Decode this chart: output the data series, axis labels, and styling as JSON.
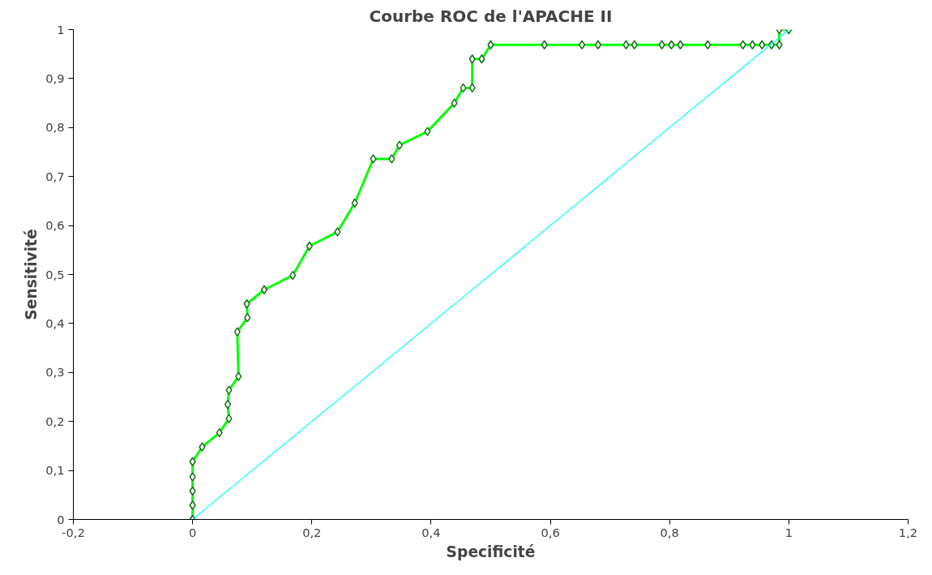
{
  "chart_data": {
    "type": "line",
    "title": "Courbe ROC de l'APACHE II",
    "xlabel": "Specificité",
    "ylabel": "Sensitivité",
    "xlim": [
      -0.2,
      1.2
    ],
    "ylim": [
      0,
      1
    ],
    "xticks": [
      {
        "value": -0.2,
        "label": "-0,2"
      },
      0,
      {
        "value": 0.2,
        "label": "0,2"
      },
      {
        "value": 0.4,
        "label": "0,4"
      },
      {
        "value": 0.6,
        "label": "0,6"
      },
      {
        "value": 0.8,
        "label": "0,8"
      },
      1,
      {
        "value": 1.2,
        "label": "1,2"
      }
    ],
    "yticks": [
      0,
      {
        "value": 0.1,
        "label": "0,1"
      },
      {
        "value": 0.2,
        "label": "0,2"
      },
      {
        "value": 0.3,
        "label": "0,3"
      },
      {
        "value": 0.4,
        "label": "0,4"
      },
      {
        "value": 0.5,
        "label": "0,5"
      },
      {
        "value": 0.6,
        "label": "0,6"
      },
      {
        "value": 0.7,
        "label": "0,7"
      },
      {
        "value": 0.8,
        "label": "0,8"
      },
      {
        "value": 0.9,
        "label": "0,9"
      },
      1
    ],
    "grid": false,
    "marker": "diamond",
    "line_style": "solid",
    "series": [
      {
        "color": "#00ff00",
        "x": [
          0,
          0,
          0,
          0,
          0,
          0.016,
          0.045,
          0.061,
          0.059,
          0.061,
          0.077,
          0.075,
          0.092,
          0.091,
          0.12,
          0.168,
          0.196,
          0.243,
          0.272,
          0.303,
          0.334,
          0.347,
          0.394,
          0.439,
          0.454,
          0.469,
          0.469,
          0.485,
          0.5,
          0.59,
          0.653,
          0.68,
          0.727,
          0.741,
          0.787,
          0.803,
          0.818,
          0.864,
          0.923,
          0.939,
          0.955,
          0.971,
          0.984,
          0.984,
          1
        ],
        "values": [
          0,
          0.029,
          0.058,
          0.087,
          0.118,
          0.148,
          0.177,
          0.206,
          0.235,
          0.264,
          0.292,
          0.383,
          0.412,
          0.44,
          0.469,
          0.498,
          0.558,
          0.587,
          0.646,
          0.736,
          0.736,
          0.764,
          0.792,
          0.85,
          0.881,
          0.881,
          0.94,
          0.94,
          0.969,
          0.969,
          0.969,
          0.969,
          0.969,
          0.969,
          0.969,
          0.969,
          0.969,
          0.969,
          0.969,
          0.969,
          0.969,
          0.969,
          0.969,
          1,
          1
        ]
      },
      {
        "color": "#00ffff",
        "marker": "none",
        "x": [
          0,
          1
        ],
        "values": [
          0,
          1
        ]
      }
    ]
  }
}
